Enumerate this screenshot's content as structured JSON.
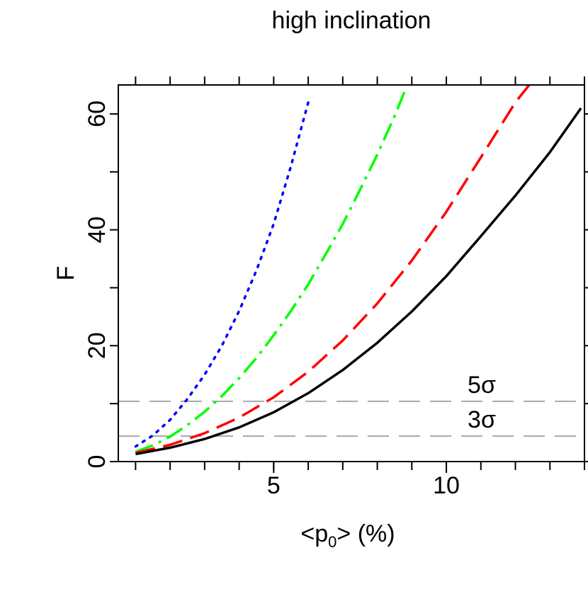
{
  "chart_data": {
    "type": "line",
    "title": "high inclination",
    "xlabel": "<p0> (%)",
    "ylabel": "F",
    "xlim": [
      0.5,
      14
    ],
    "ylim": [
      0,
      65
    ],
    "xticks": [
      5,
      10
    ],
    "xtick_labels": [
      "5",
      "10"
    ],
    "yticks": [
      0,
      20,
      40,
      60
    ],
    "ytick_labels": [
      "0",
      "20",
      "40",
      "60"
    ],
    "grid": false,
    "series": [
      {
        "style": "dotted",
        "color": "#0000ff",
        "x": [
          1,
          1.5,
          2,
          2.5,
          3,
          3.5,
          4,
          4.5,
          5,
          5.5,
          6
        ],
        "y": [
          2.6,
          4.5,
          7.2,
          10.8,
          15.0,
          20.0,
          26.0,
          33.0,
          41.0,
          51.0,
          62.0
        ]
      },
      {
        "style": "dotdash",
        "color": "#00ff00",
        "x": [
          1,
          1.5,
          2,
          2.5,
          3,
          3.5,
          4,
          4.5,
          5,
          5.5,
          6,
          6.5,
          7,
          7.5,
          8,
          8.5,
          8.8
        ],
        "y": [
          1.7,
          2.8,
          4.3,
          6.3,
          8.6,
          11.3,
          14.4,
          17.9,
          21.8,
          26.0,
          30.6,
          35.7,
          41.0,
          46.9,
          53.0,
          59.6,
          64.0
        ]
      },
      {
        "style": "dashed",
        "color": "#ff0000",
        "x": [
          1,
          2,
          3,
          4,
          5,
          6,
          7,
          8,
          9,
          10,
          11,
          12,
          12.4
        ],
        "y": [
          1.5,
          2.9,
          4.9,
          7.6,
          11.1,
          15.5,
          20.9,
          27.3,
          34.7,
          43.1,
          52.5,
          62.0,
          65.0
        ]
      },
      {
        "style": "solid",
        "color": "#000000",
        "x": [
          1,
          2,
          3,
          4,
          5,
          6,
          7,
          8,
          9,
          10,
          11,
          12,
          13,
          13.9
        ],
        "y": [
          1.3,
          2.4,
          3.9,
          5.9,
          8.5,
          11.8,
          15.8,
          20.5,
          25.9,
          32.0,
          38.9,
          45.9,
          53.4,
          61.0
        ]
      }
    ],
    "hlines": [
      {
        "y": 10.4,
        "label": "5σ",
        "color": "#aaaaaa"
      },
      {
        "y": 4.4,
        "label": "3σ",
        "color": "#aaaaaa"
      }
    ]
  }
}
